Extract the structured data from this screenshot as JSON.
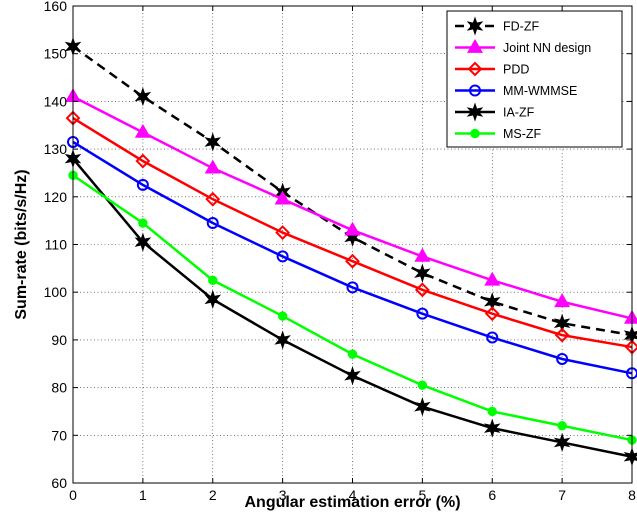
{
  "chart_data": {
    "type": "line",
    "xlabel": "Angular estimation error (%)",
    "ylabel": "Sum-rate (bits/s/Hz)",
    "xlim": [
      0,
      8
    ],
    "ylim": [
      60,
      160
    ],
    "xticks": [
      0,
      1,
      2,
      3,
      4,
      5,
      6,
      7,
      8
    ],
    "yticks": [
      60,
      70,
      80,
      90,
      100,
      110,
      120,
      130,
      140,
      150,
      160
    ],
    "grid": true,
    "legend_position": "top-right",
    "x": [
      0,
      1,
      2,
      3,
      4,
      5,
      6,
      7,
      8
    ],
    "series": [
      {
        "name": "FD-ZF",
        "color": "#000000",
        "dash": "dashed",
        "marker": "hexagram",
        "values": [
          151.5,
          141,
          131.5,
          121,
          111.5,
          104,
          98,
          93.5,
          91
        ]
      },
      {
        "name": "Joint NN design",
        "color": "#ff00ff",
        "dash": "solid",
        "marker": "triangle",
        "values": [
          141,
          133.5,
          126,
          119.5,
          113,
          107.5,
          102.5,
          98,
          94.5
        ]
      },
      {
        "name": "PDD",
        "color": "#ff0000",
        "dash": "solid",
        "marker": "diamond",
        "values": [
          136.5,
          127.5,
          119.5,
          112.5,
          106.5,
          100.5,
          95.5,
          91,
          88.5
        ]
      },
      {
        "name": "MM-WMMSE",
        "color": "#0000ff",
        "dash": "solid",
        "marker": "circle",
        "values": [
          131.5,
          122.5,
          114.5,
          107.5,
          101,
          95.5,
          90.5,
          86,
          83
        ]
      },
      {
        "name": "IA-ZF",
        "color": "#000000",
        "dash": "solid",
        "marker": "hexagram",
        "values": [
          128,
          110.5,
          98.5,
          90,
          82.5,
          76,
          71.5,
          68.5,
          65.5
        ]
      },
      {
        "name": "MS-ZF",
        "color": "#00ff00",
        "dash": "solid",
        "marker": "dot",
        "values": [
          124.5,
          114.5,
          102.5,
          95,
          87,
          80.5,
          75,
          72,
          69
        ]
      }
    ]
  }
}
